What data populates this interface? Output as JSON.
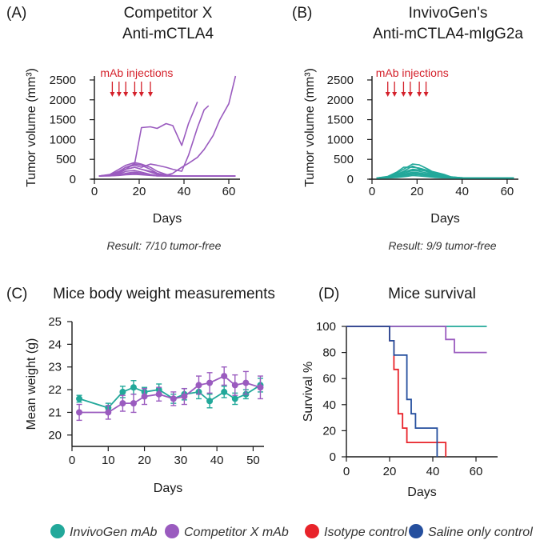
{
  "colors": {
    "invivogen": "#22a89a",
    "competitor": "#9a5bbf",
    "isotype": "#e8232a",
    "saline": "#254f9e",
    "injection": "#d4202a",
    "axis": "#1a1a1a"
  },
  "panels": {
    "A": {
      "letter": "(A)",
      "title_line1": "Competitor X",
      "title_line2": "Anti-mCTLA4",
      "result": "Result: 7/10 tumor-free",
      "injection_label": "mAb injections"
    },
    "B": {
      "letter": "(B)",
      "title_line1": "InvivoGen's",
      "title_line2": "Anti-mCTLA4-mIgG2a",
      "result": "Result:  9/9 tumor-free",
      "injection_label": "mAb injections"
    },
    "C": {
      "letter": "(C)",
      "title": "Mice body weight measurements"
    },
    "D": {
      "letter": "(D)",
      "title": "Mice survival"
    }
  },
  "legend": [
    {
      "label": "InvivoGen mAb",
      "color": "#22a89a"
    },
    {
      "label": "Competitor X mAb",
      "color": "#9a5bbf"
    },
    {
      "label": "Isotype control",
      "color": "#e8232a"
    },
    {
      "label": "Saline only control",
      "color": "#254f9e"
    }
  ],
  "chart_data": [
    {
      "id": "A",
      "type": "line",
      "title": "Competitor X Anti-mCTLA4",
      "xlabel": "Days",
      "ylabel": "Tumor volume (mm³)",
      "xlim": [
        0,
        65
      ],
      "ylim": [
        0,
        2600
      ],
      "xticks": [
        0,
        20,
        40,
        60
      ],
      "yticks": [
        0,
        500,
        1000,
        1500,
        2000,
        2500
      ],
      "injection_days": [
        8,
        11,
        14,
        18,
        21,
        25
      ],
      "series": [
        {
          "x": [
            2,
            7,
            11,
            14,
            18,
            21,
            25,
            28,
            32,
            35,
            39,
            42,
            46,
            49,
            53,
            56,
            60,
            63
          ],
          "y": [
            80,
            100,
            150,
            250,
            400,
            1300,
            1320,
            1280,
            1400,
            1350,
            850,
            1400,
            1950,
            null,
            null,
            null,
            null,
            null
          ]
        },
        {
          "x": [
            2,
            7,
            11,
            14,
            18,
            21,
            25,
            28,
            32,
            35,
            39,
            42,
            46,
            49,
            51
          ],
          "y": [
            80,
            110,
            180,
            300,
            350,
            300,
            380,
            350,
            300,
            250,
            200,
            600,
            1300,
            1750,
            1850
          ]
        },
        {
          "x": [
            2,
            7,
            11,
            14,
            18,
            21,
            25,
            28,
            32,
            35,
            39,
            42,
            46,
            49,
            53,
            56,
            60,
            63
          ],
          "y": [
            80,
            110,
            200,
            250,
            300,
            250,
            200,
            150,
            100,
            150,
            300,
            400,
            550,
            750,
            1100,
            1500,
            1900,
            2600
          ]
        },
        {
          "x": [
            2,
            7,
            11,
            14,
            18,
            21,
            25,
            28,
            32,
            35,
            39,
            42,
            46,
            49,
            53,
            56,
            60,
            63
          ],
          "y": [
            80,
            120,
            250,
            350,
            420,
            380,
            300,
            200,
            120,
            90,
            80,
            80,
            80,
            80,
            80,
            80,
            80,
            80
          ]
        },
        {
          "x": [
            2,
            7,
            11,
            14,
            18,
            21,
            25,
            28,
            32,
            35,
            39,
            42,
            46,
            49,
            53,
            56,
            60,
            63
          ],
          "y": [
            80,
            100,
            200,
            300,
            380,
            350,
            250,
            150,
            100,
            80,
            80,
            80,
            80,
            80,
            80,
            80,
            80,
            80
          ]
        },
        {
          "x": [
            2,
            7,
            11,
            14,
            18,
            21,
            25,
            28,
            32,
            35,
            39,
            42,
            46,
            49,
            53,
            56,
            60,
            63
          ],
          "y": [
            80,
            100,
            150,
            250,
            300,
            250,
            180,
            120,
            90,
            80,
            80,
            80,
            80,
            80,
            80,
            80,
            80,
            80
          ]
        },
        {
          "x": [
            2,
            7,
            11,
            14,
            18,
            21,
            25,
            28,
            32,
            35,
            39,
            42,
            46,
            49,
            53,
            56,
            60,
            63
          ],
          "y": [
            80,
            90,
            120,
            200,
            220,
            180,
            120,
            90,
            80,
            80,
            80,
            80,
            80,
            80,
            80,
            80,
            80,
            80
          ]
        },
        {
          "x": [
            2,
            7,
            11,
            14,
            18,
            21,
            25,
            28,
            32,
            35,
            39,
            42,
            46,
            49,
            53,
            56,
            60,
            63
          ],
          "y": [
            80,
            90,
            100,
            150,
            180,
            150,
            100,
            80,
            80,
            80,
            80,
            80,
            80,
            80,
            80,
            80,
            80,
            80
          ]
        },
        {
          "x": [
            2,
            7,
            11,
            14,
            18,
            21,
            25,
            28,
            32,
            35,
            39,
            42,
            46,
            49,
            53,
            56,
            60,
            63
          ],
          "y": [
            80,
            85,
            100,
            120,
            150,
            140,
            100,
            90,
            80,
            80,
            80,
            80,
            80,
            80,
            80,
            80,
            80,
            80
          ]
        },
        {
          "x": [
            2,
            7,
            11,
            14,
            18,
            21,
            25,
            28,
            32,
            35,
            39,
            42,
            46,
            49,
            53,
            56,
            60,
            63
          ],
          "y": [
            80,
            85,
            95,
            110,
            120,
            110,
            95,
            85,
            80,
            80,
            80,
            80,
            80,
            80,
            80,
            80,
            80,
            80
          ]
        }
      ]
    },
    {
      "id": "B",
      "type": "line",
      "title": "InvivoGen's Anti-mCTLA4-mIgG2a",
      "xlabel": "Days",
      "ylabel": "Tumor volume (mm³)",
      "xlim": [
        0,
        65
      ],
      "ylim": [
        0,
        2600
      ],
      "xticks": [
        0,
        20,
        40,
        60
      ],
      "yticks": [
        0,
        500,
        1000,
        1500,
        2000,
        2500
      ],
      "injection_days": [
        7,
        10,
        14,
        17,
        21,
        24
      ],
      "series": [
        {
          "x": [
            2,
            7,
            11,
            14,
            18,
            21,
            25,
            28,
            32,
            35,
            39,
            42,
            46,
            49,
            53,
            56,
            60,
            63
          ],
          "y": [
            30,
            60,
            150,
            250,
            380,
            360,
            250,
            150,
            80,
            50,
            40,
            30,
            30,
            30,
            30,
            30,
            30,
            30
          ]
        },
        {
          "x": [
            2,
            7,
            11,
            14,
            18,
            21,
            25,
            28,
            32,
            35,
            39,
            42,
            46,
            49,
            53,
            56,
            60,
            63
          ],
          "y": [
            30,
            70,
            180,
            300,
            300,
            280,
            220,
            180,
            120,
            60,
            40,
            30,
            30,
            30,
            30,
            30,
            30,
            30
          ]
        },
        {
          "x": [
            2,
            7,
            11,
            14,
            18,
            21,
            25,
            28,
            32,
            35,
            39,
            42,
            46,
            49,
            53,
            56,
            60,
            63
          ],
          "y": [
            30,
            60,
            120,
            200,
            330,
            260,
            180,
            120,
            70,
            40,
            30,
            30,
            30,
            30,
            30,
            30,
            30,
            30
          ]
        },
        {
          "x": [
            2,
            7,
            11,
            14,
            18,
            21,
            25,
            28,
            32,
            35,
            39,
            42,
            46,
            49,
            53,
            56,
            60,
            63
          ],
          "y": [
            30,
            50,
            100,
            180,
            250,
            230,
            200,
            150,
            100,
            60,
            40,
            30,
            30,
            30,
            30,
            30,
            30,
            30
          ]
        },
        {
          "x": [
            2,
            7,
            11,
            14,
            18,
            21,
            25,
            28,
            32,
            35,
            39,
            42,
            46,
            49,
            53,
            56,
            60,
            63
          ],
          "y": [
            30,
            50,
            90,
            150,
            220,
            200,
            150,
            100,
            60,
            40,
            30,
            30,
            30,
            30,
            30,
            30,
            30,
            30
          ]
        },
        {
          "x": [
            2,
            7,
            11,
            14,
            18,
            21,
            25,
            28,
            32,
            35,
            39,
            42,
            46,
            49,
            53,
            56,
            60,
            63
          ],
          "y": [
            30,
            40,
            80,
            120,
            180,
            160,
            120,
            80,
            50,
            35,
            30,
            30,
            30,
            30,
            30,
            30,
            30,
            30
          ]
        },
        {
          "x": [
            2,
            7,
            11,
            14,
            18,
            21,
            25,
            28,
            32,
            35,
            39,
            42,
            46,
            49,
            53,
            56,
            60,
            63
          ],
          "y": [
            30,
            40,
            60,
            100,
            150,
            140,
            100,
            70,
            45,
            35,
            30,
            30,
            30,
            30,
            30,
            30,
            30,
            30
          ]
        },
        {
          "x": [
            2,
            7,
            11,
            14,
            18,
            21,
            25,
            28,
            32,
            35,
            39,
            42,
            46,
            49,
            53,
            56,
            60,
            63
          ],
          "y": [
            30,
            35,
            50,
            80,
            120,
            110,
            80,
            55,
            40,
            30,
            30,
            30,
            30,
            30,
            30,
            30,
            30,
            30
          ]
        },
        {
          "x": [
            2,
            7,
            11,
            14,
            18,
            21,
            25,
            28,
            32,
            35,
            39,
            42,
            46,
            49,
            53,
            56,
            60,
            63
          ],
          "y": [
            30,
            35,
            45,
            60,
            90,
            80,
            60,
            45,
            35,
            30,
            30,
            30,
            30,
            30,
            30,
            30,
            30,
            30
          ]
        }
      ]
    },
    {
      "id": "C",
      "type": "line",
      "title": "Mice body weight measurements",
      "xlabel": "Days",
      "ylabel": "Mean weight (g)",
      "xlim": [
        0,
        53
      ],
      "ylim": [
        19.5,
        25
      ],
      "xticks": [
        0,
        10,
        20,
        30,
        40,
        50
      ],
      "yticks": [
        20,
        21,
        22,
        23,
        24,
        25
      ],
      "series": [
        {
          "name": "InvivoGen mAb",
          "color_key": "invivogen",
          "x": [
            2,
            10,
            14,
            17,
            20,
            24,
            28,
            31,
            35,
            38,
            42,
            45,
            48,
            52
          ],
          "y": [
            21.6,
            21.2,
            21.9,
            22.1,
            21.9,
            22.0,
            21.6,
            21.8,
            21.9,
            21.5,
            21.9,
            21.6,
            21.8,
            22.2
          ],
          "err": [
            0.15,
            0.2,
            0.25,
            0.3,
            0.2,
            0.25,
            0.2,
            0.25,
            0.3,
            0.3,
            0.25,
            0.25,
            0.2,
            0.3
          ]
        },
        {
          "name": "Competitor X mAb",
          "color_key": "competitor",
          "x": [
            2,
            10,
            14,
            17,
            20,
            24,
            28,
            31,
            35,
            38,
            42,
            45,
            48,
            52
          ],
          "y": [
            21.0,
            21.0,
            21.4,
            21.4,
            21.7,
            21.8,
            21.6,
            21.7,
            22.2,
            22.3,
            22.6,
            22.2,
            22.3,
            22.1
          ],
          "err": [
            0.35,
            0.3,
            0.35,
            0.4,
            0.35,
            0.3,
            0.3,
            0.35,
            0.4,
            0.45,
            0.4,
            0.45,
            0.5,
            0.5
          ]
        }
      ]
    },
    {
      "id": "D",
      "type": "line",
      "title": "Mice survival",
      "xlabel": "Days",
      "ylabel": "Survival %",
      "xlim": [
        0,
        70
      ],
      "ylim": [
        0,
        100
      ],
      "xticks": [
        0,
        20,
        40,
        60
      ],
      "yticks": [
        0,
        20,
        40,
        60,
        80,
        100
      ],
      "series": [
        {
          "name": "InvivoGen mAb",
          "color_key": "invivogen",
          "x": [
            0,
            65
          ],
          "y": [
            100,
            100
          ]
        },
        {
          "name": "Competitor X mAb",
          "color_key": "competitor",
          "x": [
            0,
            46,
            50,
            65
          ],
          "y": [
            100,
            90,
            80,
            80
          ]
        },
        {
          "name": "Isotype control",
          "color_key": "isotype",
          "x": [
            0,
            20,
            22,
            24,
            26,
            28,
            30,
            46
          ],
          "y": [
            100,
            89,
            67,
            33,
            22,
            11,
            11,
            0
          ]
        },
        {
          "name": "Saline only control",
          "color_key": "saline",
          "x": [
            0,
            20,
            22,
            24,
            28,
            30,
            32,
            38,
            42
          ],
          "y": [
            100,
            89,
            78,
            78,
            44,
            33,
            22,
            22,
            0
          ]
        }
      ]
    }
  ]
}
